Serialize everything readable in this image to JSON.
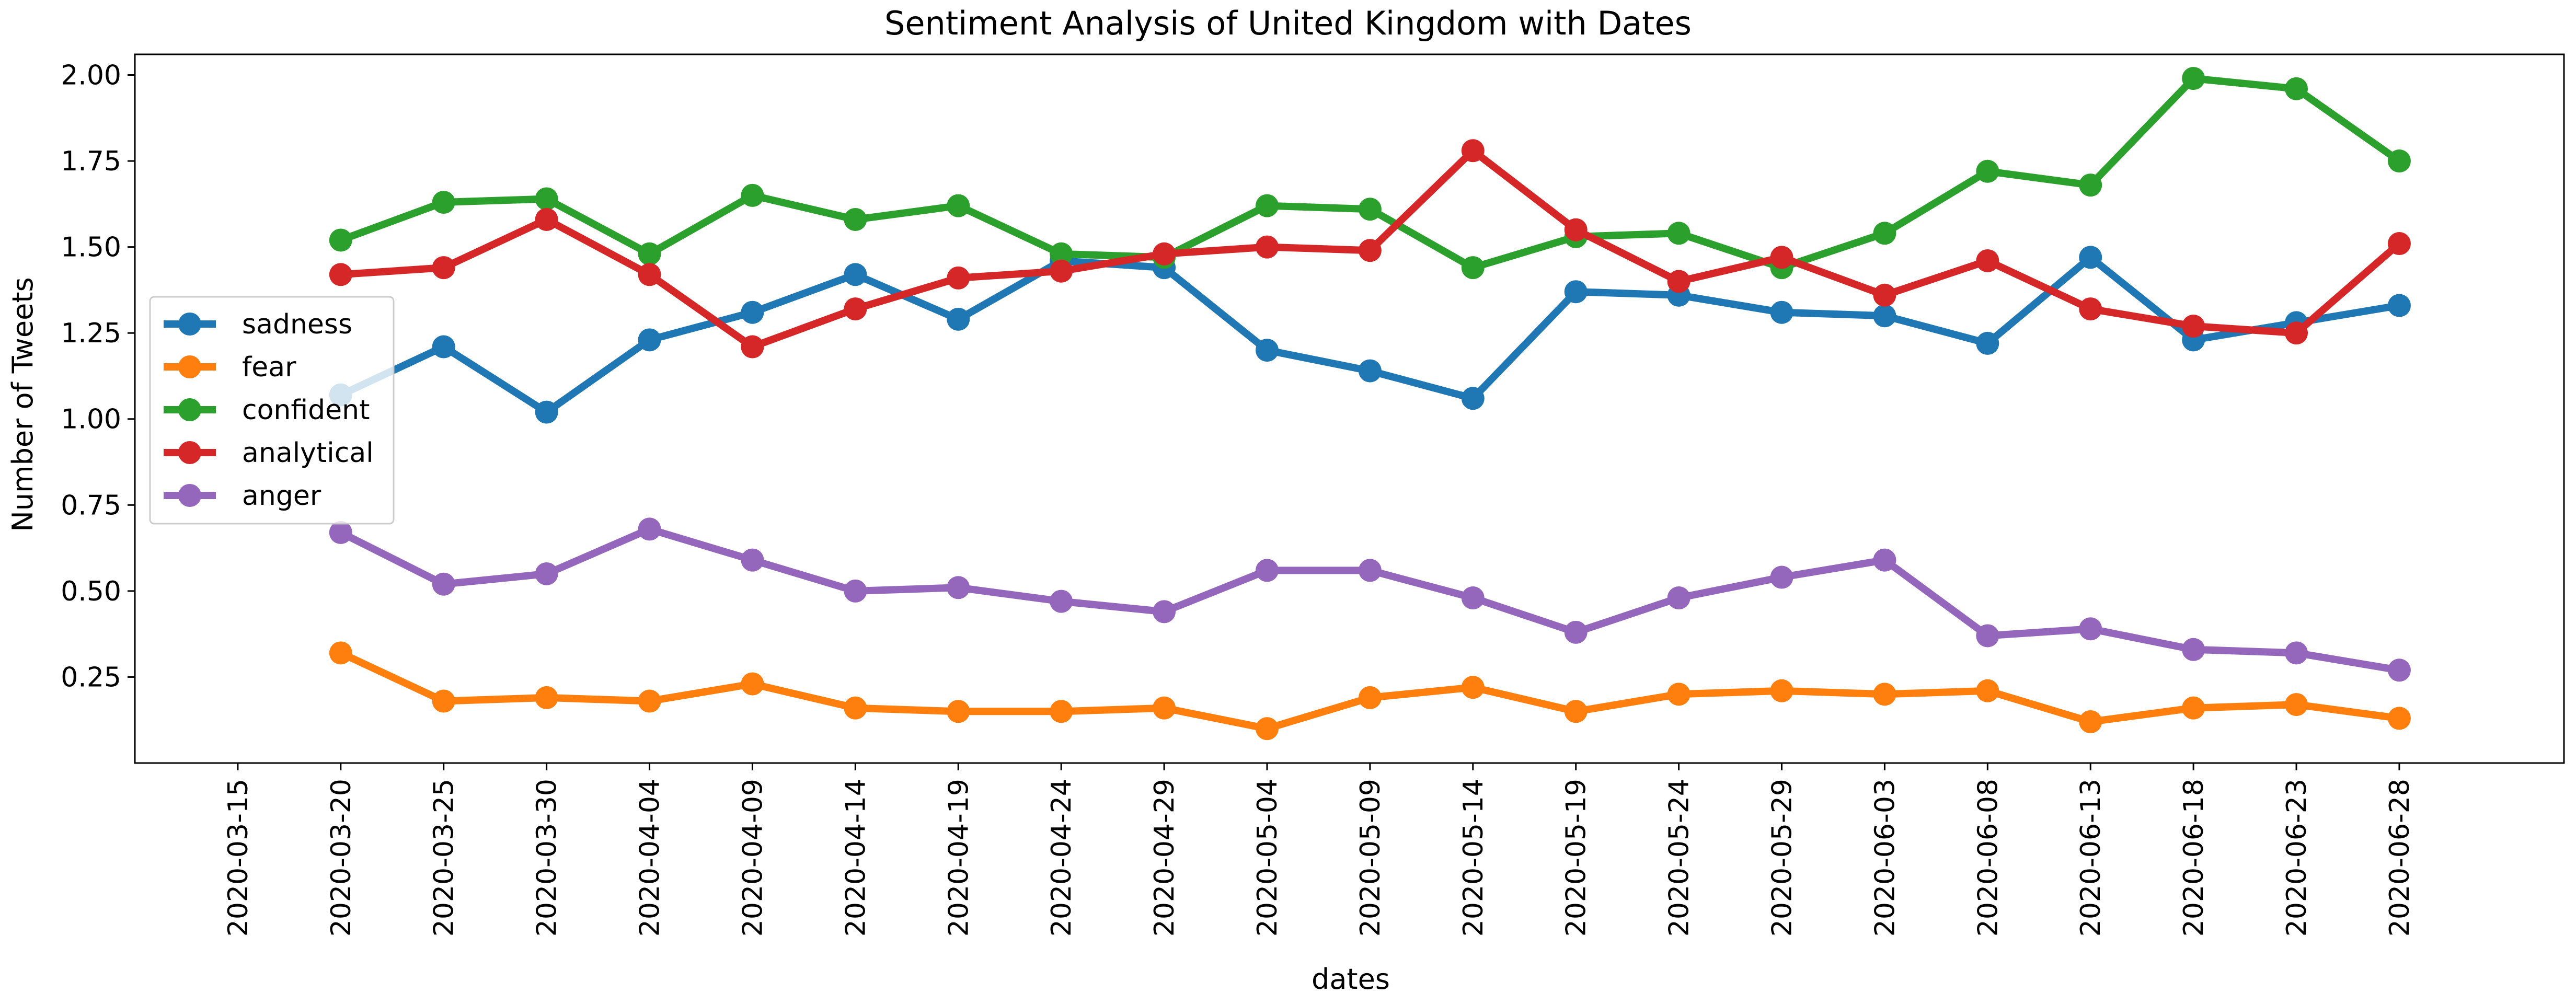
{
  "chart_data": {
    "type": "line",
    "title": "Sentiment Analysis of United Kingdom with Dates",
    "xlabel": "dates",
    "ylabel": "Number of Tweets",
    "x_ticks": [
      "2020-03-15",
      "2020-03-20",
      "2020-03-25",
      "2020-03-30",
      "2020-04-04",
      "2020-04-09",
      "2020-04-14",
      "2020-04-19",
      "2020-04-24",
      "2020-04-29",
      "2020-05-04",
      "2020-05-09",
      "2020-05-14",
      "2020-05-19",
      "2020-05-24",
      "2020-05-29",
      "2020-06-03",
      "2020-06-08",
      "2020-06-13",
      "2020-06-18",
      "2020-06-23",
      "2020-06-28"
    ],
    "y_ticks": [
      "0.25",
      "0.50",
      "0.75",
      "1.00",
      "1.25",
      "1.50",
      "1.75",
      "2.00"
    ],
    "x": [
      "2020-03-20",
      "2020-03-25",
      "2020-03-30",
      "2020-04-04",
      "2020-04-09",
      "2020-04-14",
      "2020-04-19",
      "2020-04-24",
      "2020-04-29",
      "2020-05-04",
      "2020-05-09",
      "2020-05-14",
      "2020-05-19",
      "2020-05-24",
      "2020-05-29",
      "2020-06-03",
      "2020-06-08",
      "2020-06-13",
      "2020-06-18",
      "2020-06-23",
      "2020-06-28"
    ],
    "xlim": [
      "2020-03-10",
      "2020-07-06"
    ],
    "ylim": [
      0.0,
      2.06
    ],
    "grid": false,
    "legend_position": "center-left",
    "series": [
      {
        "name": "sadness",
        "color": "#1f77b4",
        "values": [
          1.07,
          1.21,
          1.02,
          1.23,
          1.31,
          1.42,
          1.29,
          1.46,
          1.44,
          1.2,
          1.14,
          1.06,
          1.37,
          1.36,
          1.31,
          1.3,
          1.22,
          1.47,
          1.23,
          1.28,
          1.33
        ]
      },
      {
        "name": "fear",
        "color": "#ff7f0e",
        "values": [
          0.32,
          0.18,
          0.19,
          0.18,
          0.23,
          0.16,
          0.15,
          0.15,
          0.16,
          0.1,
          0.19,
          0.22,
          0.15,
          0.2,
          0.21,
          0.2,
          0.21,
          0.12,
          0.16,
          0.17,
          0.13
        ]
      },
      {
        "name": "confident",
        "color": "#2ca02c",
        "values": [
          1.52,
          1.63,
          1.64,
          1.48,
          1.65,
          1.58,
          1.62,
          1.48,
          1.47,
          1.62,
          1.61,
          1.44,
          1.53,
          1.54,
          1.44,
          1.54,
          1.72,
          1.68,
          1.99,
          1.96,
          1.75
        ]
      },
      {
        "name": "analytical",
        "color": "#d62728",
        "values": [
          1.42,
          1.44,
          1.58,
          1.42,
          1.21,
          1.32,
          1.41,
          1.43,
          1.48,
          1.5,
          1.49,
          1.78,
          1.55,
          1.4,
          1.47,
          1.36,
          1.46,
          1.32,
          1.27,
          1.25,
          1.51
        ]
      },
      {
        "name": "anger",
        "color": "#9467bd",
        "values": [
          0.67,
          0.52,
          0.55,
          0.68,
          0.59,
          0.5,
          0.51,
          0.47,
          0.44,
          0.56,
          0.56,
          0.48,
          0.38,
          0.48,
          0.54,
          0.59,
          0.37,
          0.39,
          0.33,
          0.32,
          0.27
        ]
      }
    ]
  }
}
